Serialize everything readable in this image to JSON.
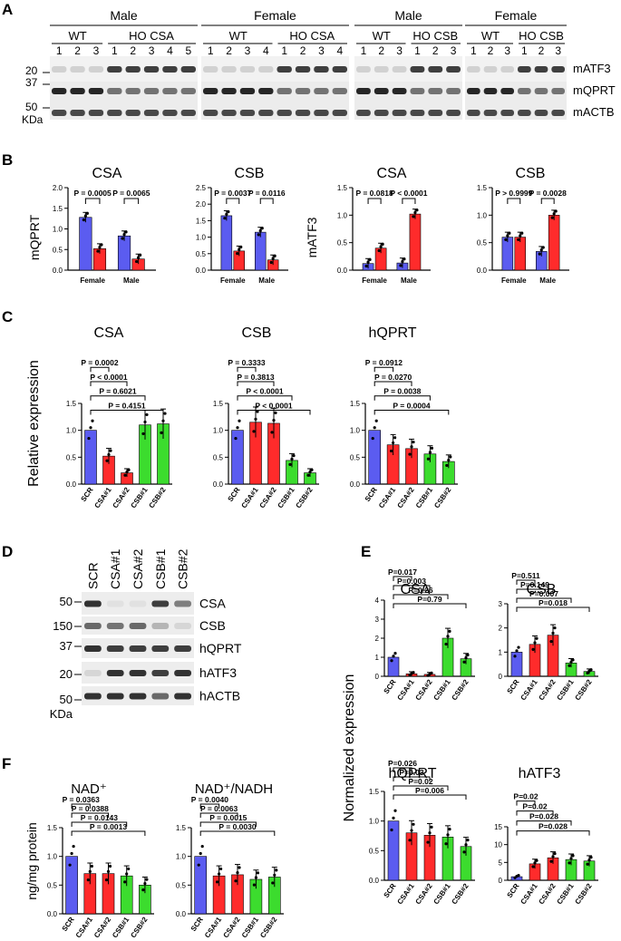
{
  "colors": {
    "blue": "#5b5cf0",
    "red": "#ff2b2b",
    "green": "#3cdc2e"
  },
  "panelA": {
    "letter": "A",
    "groups": [
      {
        "sex": "Male",
        "wt": "WT",
        "ho": "HO CSA",
        "lanes": [
          "1",
          "2",
          "3",
          "1",
          "2",
          "3",
          "4",
          "5"
        ]
      },
      {
        "sex": "Female",
        "wt": "WT",
        "ho": "HO CSA",
        "lanes": [
          "1",
          "2",
          "3",
          "4",
          "1",
          "2",
          "3",
          "4"
        ]
      },
      {
        "sex": "Male",
        "wt": "WT",
        "ho": "HO CSB",
        "lanes": [
          "1",
          "2",
          "3",
          "1",
          "2",
          "3"
        ]
      },
      {
        "sex": "Female",
        "wt": "WT",
        "ho": "HO CSB",
        "lanes": [
          "1",
          "2",
          "3",
          "1",
          "2",
          "3"
        ]
      }
    ],
    "markers": [
      "20",
      "37",
      "50",
      "KDa"
    ],
    "bands": [
      "mATF3",
      "mQPRT",
      "mACTB"
    ]
  },
  "panelB": {
    "letter": "B",
    "ylabel_left": "mQPRT",
    "ylabel_right": "mATF3",
    "xlabels": [
      "Female",
      "Male"
    ]
  },
  "panelC": {
    "letter": "C",
    "ylabel": "Relative expression"
  },
  "panelD": {
    "letter": "D",
    "lanes": [
      "SCR",
      "CSA#1",
      "CSA#2",
      "CSB#1",
      "CSB#2"
    ],
    "markers": [
      "50",
      "150",
      "37",
      "20",
      "50",
      "KDa"
    ],
    "bands": [
      "CSA",
      "CSB",
      "hQPRT",
      "hATF3",
      "hACTB"
    ]
  },
  "panelE": {
    "letter": "E",
    "ylabel": "Normalized expression"
  },
  "panelF": {
    "letter": "F",
    "ylabel": "ng/mg protein"
  },
  "chart_data": [
    {
      "id": "B1",
      "type": "bar",
      "title": "CSA",
      "ylabel": "mQPRT",
      "categories": [
        "Female",
        "Male"
      ],
      "ylim": [
        0,
        2.0
      ],
      "yticks": [
        "0.0",
        "0.5",
        "1.0",
        "1.5",
        "2.0"
      ],
      "series": [
        {
          "name": "WT",
          "color": "blue",
          "values": [
            1.28,
            0.83
          ]
        },
        {
          "name": "HO",
          "color": "red",
          "values": [
            0.52,
            0.27
          ]
        }
      ],
      "pvalues": [
        "P = 0.0005",
        "P = 0.0065"
      ]
    },
    {
      "id": "B2",
      "type": "bar",
      "title": "CSB",
      "ylabel": "",
      "categories": [
        "Female",
        "Male"
      ],
      "ylim": [
        0,
        2.5
      ],
      "yticks": [
        "0.0",
        "0.5",
        "1.0",
        "1.5",
        "2.0",
        "2.5"
      ],
      "series": [
        {
          "name": "WT",
          "color": "blue",
          "values": [
            1.65,
            1.15
          ]
        },
        {
          "name": "HO",
          "color": "red",
          "values": [
            0.58,
            0.31
          ]
        }
      ],
      "pvalues": [
        "P = 0.0037",
        "P = 0.0116"
      ]
    },
    {
      "id": "B3",
      "type": "bar",
      "title": "CSA",
      "ylabel": "mATF3",
      "categories": [
        "Female",
        "Male"
      ],
      "ylim": [
        0,
        1.5
      ],
      "yticks": [
        "0.0",
        "0.5",
        "1.0",
        "1.5"
      ],
      "series": [
        {
          "name": "WT",
          "color": "blue",
          "values": [
            0.12,
            0.13
          ]
        },
        {
          "name": "HO",
          "color": "red",
          "values": [
            0.4,
            1.02
          ]
        }
      ],
      "pvalues": [
        "P = 0.0818",
        "P < 0.0001"
      ]
    },
    {
      "id": "B4",
      "type": "bar",
      "title": "CSB",
      "ylabel": "",
      "categories": [
        "Female",
        "Male"
      ],
      "ylim": [
        0,
        1.5
      ],
      "yticks": [
        "0.0",
        "0.5",
        "1.0",
        "1.5"
      ],
      "series": [
        {
          "name": "WT",
          "color": "blue",
          "values": [
            0.6,
            0.34
          ]
        },
        {
          "name": "HO",
          "color": "red",
          "values": [
            0.6,
            1.0
          ]
        }
      ],
      "pvalues": [
        "P > 0.9999",
        "P = 0.0028"
      ]
    },
    {
      "id": "C1",
      "type": "bar",
      "title": "CSA",
      "categories": [
        "SCR",
        "CSA#1",
        "CSA#2",
        "CSB#1",
        "CSB#2"
      ],
      "colors": [
        "blue",
        "red",
        "red",
        "green",
        "green"
      ],
      "values": [
        1.0,
        0.52,
        0.21,
        1.1,
        1.12
      ],
      "ylim": [
        0,
        1.5
      ],
      "yticks": [
        "0.0",
        "0.5",
        "1.0",
        "1.5"
      ],
      "pvalues": [
        "P = 0.0002",
        "P < 0.0001",
        "P = 0.6021",
        "P = 0.4151"
      ]
    },
    {
      "id": "C2",
      "type": "bar",
      "title": "CSB",
      "categories": [
        "SCR",
        "CSA#1",
        "CSA#2",
        "CSB#1",
        "CSB#2"
      ],
      "colors": [
        "blue",
        "red",
        "red",
        "green",
        "green"
      ],
      "values": [
        1.0,
        1.15,
        1.13,
        0.44,
        0.21
      ],
      "ylim": [
        0,
        1.5
      ],
      "yticks": [
        "0.0",
        "0.5",
        "1.0",
        "1.5"
      ],
      "pvalues": [
        "P = 0.3333",
        "P = 0.3813",
        "P < 0.0001",
        "P < 0.0001"
      ]
    },
    {
      "id": "C3",
      "type": "bar",
      "title": "hQPRT",
      "categories": [
        "SCR",
        "CSA#1",
        "CSA#2",
        "CSB#1",
        "CSB#2"
      ],
      "colors": [
        "blue",
        "red",
        "red",
        "green",
        "green"
      ],
      "values": [
        1.0,
        0.73,
        0.66,
        0.56,
        0.42
      ],
      "ylim": [
        0,
        1.5
      ],
      "yticks": [
        "0.0",
        "0.5",
        "1.0",
        "1.5"
      ],
      "pvalues": [
        "P = 0.0912",
        "P = 0.0270",
        "P = 0.0038",
        "P = 0.0004"
      ]
    },
    {
      "id": "E1",
      "type": "bar",
      "title": "CSA",
      "categories": [
        "SCR",
        "CSA#1",
        "CSA#2",
        "CSB#1",
        "CSB#2"
      ],
      "colors": [
        "blue",
        "red",
        "red",
        "green",
        "green"
      ],
      "values": [
        1.0,
        0.13,
        0.1,
        2.0,
        0.92
      ],
      "ylim": [
        0,
        4
      ],
      "yticks": [
        "0",
        "1",
        "2",
        "3",
        "4"
      ],
      "pvalues": [
        "P=0.017",
        "P=0.003",
        "P=0.26",
        "P=0.79"
      ]
    },
    {
      "id": "E2",
      "type": "bar",
      "title": "CSB",
      "categories": [
        "SCR",
        "CSA#1",
        "CSA#2",
        "CSB#1",
        "CSB#2"
      ],
      "colors": [
        "blue",
        "red",
        "red",
        "green",
        "green"
      ],
      "values": [
        1.0,
        1.32,
        1.7,
        0.55,
        0.2
      ],
      "ylim": [
        0,
        3
      ],
      "yticks": [
        "0",
        "1",
        "2",
        "3"
      ],
      "pvalues": [
        "P=0.511",
        "P=0.149",
        "P=0.007",
        "P=0.018"
      ]
    },
    {
      "id": "E3",
      "type": "bar",
      "title": "hQPRT",
      "categories": [
        "SCR",
        "CSA#1",
        "CSA#2",
        "CSB#1",
        "CSB#2"
      ],
      "colors": [
        "blue",
        "red",
        "red",
        "green",
        "green"
      ],
      "values": [
        1.0,
        0.8,
        0.76,
        0.73,
        0.57
      ],
      "ylim": [
        0,
        1.5
      ],
      "yticks": [
        "0.0",
        "0.5",
        "1.0",
        "1.5"
      ],
      "pvalues": [
        "P=0.026",
        "P=0.03",
        "P=0.02",
        "P=0.006"
      ]
    },
    {
      "id": "E4",
      "type": "bar",
      "title": "hATF3",
      "categories": [
        "SCR",
        "CSA#1",
        "CSA#2",
        "CSB#1",
        "CSB#2"
      ],
      "colors": [
        "blue",
        "red",
        "red",
        "green",
        "green"
      ],
      "values": [
        1.0,
        4.6,
        6.3,
        5.8,
        5.4
      ],
      "ylim": [
        0,
        15
      ],
      "yticks": [
        "0",
        "5",
        "10",
        "15"
      ],
      "pvalues": [
        "P=0.02",
        "P=0.02",
        "P=0.028",
        "P=0.028"
      ]
    },
    {
      "id": "F1",
      "type": "bar",
      "title": "NAD⁺",
      "categories": [
        "SCR",
        "CSA#1",
        "CSA#2",
        "CSB#1",
        "CSB#2"
      ],
      "colors": [
        "blue",
        "red",
        "red",
        "green",
        "green"
      ],
      "values": [
        1.0,
        0.7,
        0.7,
        0.66,
        0.5
      ],
      "ylim": [
        0,
        1.5
      ],
      "yticks": [
        "0.0",
        "0.5",
        "1.0",
        "1.5"
      ],
      "pvalues": [
        "P = 0.0363",
        "P = 0.0388",
        "P = 0.0143",
        "P = 0.0013"
      ]
    },
    {
      "id": "F2",
      "type": "bar",
      "title": "NAD⁺/NADH",
      "categories": [
        "SCR",
        "CSA#1",
        "CSA#2",
        "CSB#1",
        "CSB#2"
      ],
      "colors": [
        "blue",
        "red",
        "red",
        "green",
        "green"
      ],
      "values": [
        1.0,
        0.66,
        0.68,
        0.6,
        0.64
      ],
      "ylim": [
        0,
        1.5
      ],
      "yticks": [
        "0.0",
        "0.5",
        "1.0",
        "1.5"
      ],
      "pvalues": [
        "P = 0.0040",
        "P = 0.0063",
        "P = 0.0015",
        "P = 0.0030"
      ]
    }
  ]
}
